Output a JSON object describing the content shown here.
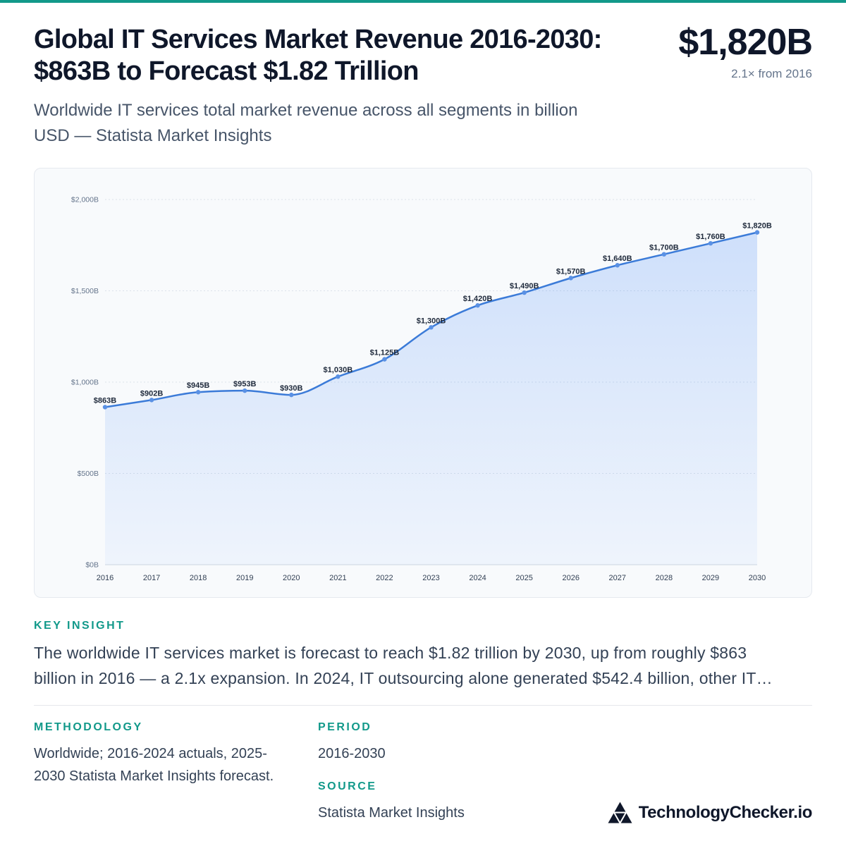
{
  "theme": {
    "accent": "#12998a",
    "text_primary": "#0f172a",
    "line": "#3b7bd8",
    "point": "#5a91e4",
    "area": "#3b82f6",
    "card_background": "#f8fafc"
  },
  "header": {
    "title": "Global IT Services Market Revenue 2016-2030: $863B to Forecast $1.82 Trillion",
    "subtitle": "Worldwide IT services total market revenue across all segments in billion USD — Statista Market Insights",
    "headline_value": "$1,820B",
    "headline_note": "2.1× from 2016"
  },
  "chart_data": {
    "type": "area",
    "categories": [
      "2016",
      "2017",
      "2018",
      "2019",
      "2020",
      "2021",
      "2022",
      "2023",
      "2024",
      "2025",
      "2026",
      "2027",
      "2028",
      "2029",
      "2030"
    ],
    "values": [
      863,
      902,
      945,
      953,
      930,
      1030,
      1125,
      1300,
      1420,
      1490,
      1570,
      1640,
      1700,
      1760,
      1820
    ],
    "data_labels": [
      "$863B",
      "$902B",
      "$945B",
      "$953B",
      "$930B",
      "$1,030B",
      "$1,125B",
      "$1,300B",
      "$1,420B",
      "$1,490B",
      "$1,570B",
      "$1,640B",
      "$1,700B",
      "$1,760B",
      "$1,820B"
    ],
    "y_ticks": [
      {
        "value": 0,
        "label": "$0B"
      },
      {
        "value": 500,
        "label": "$500B"
      },
      {
        "value": 1000,
        "label": "$1,000B"
      },
      {
        "value": 1500,
        "label": "$1,500B"
      },
      {
        "value": 2000,
        "label": "$2,000B"
      }
    ],
    "ylim": [
      0,
      2000
    ],
    "grid": true
  },
  "key_insight": {
    "label": "KEY INSIGHT",
    "text": "The worldwide IT services market is forecast to reach $1.82 trillion by 2030, up from roughly $863 billion in 2016 — a 2.1x expansion. In 2024, IT outsourcing alone generated $542.4 billion, other IT…"
  },
  "methodology": {
    "label": "METHODOLOGY",
    "text": "Worldwide; 2016-2024 actuals, 2025-2030 Statista Market Insights forecast."
  },
  "period": {
    "label": "PERIOD",
    "text": "2016-2030"
  },
  "source": {
    "label": "SOURCE",
    "text": "Statista Market Insights"
  },
  "brand": {
    "name": "TechnologyChecker.io",
    "icon": "triangle-logo-icon"
  }
}
